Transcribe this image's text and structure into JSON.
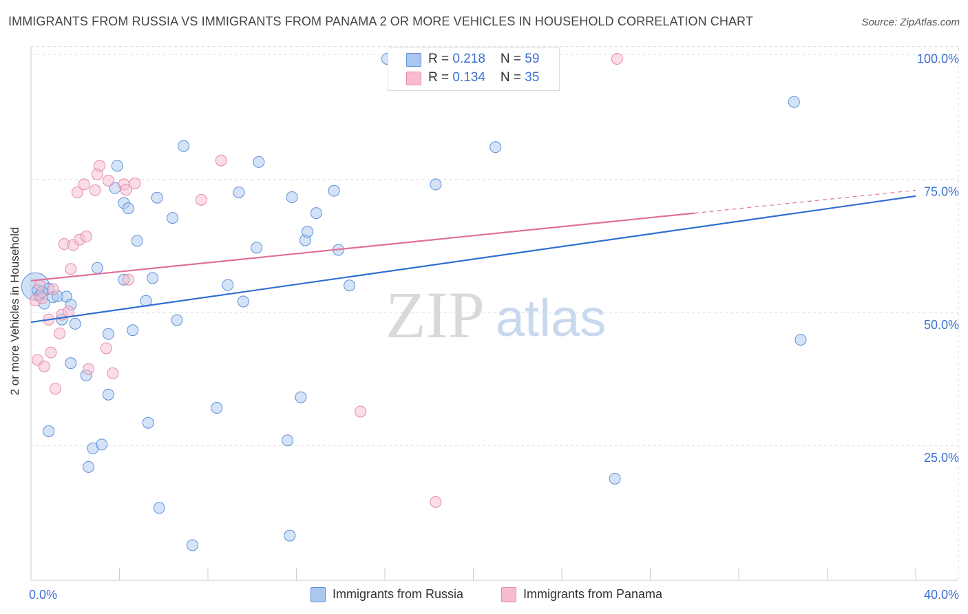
{
  "title": "IMMIGRANTS FROM RUSSIA VS IMMIGRANTS FROM PANAMA 2 OR MORE VEHICLES IN HOUSEHOLD CORRELATION CHART",
  "source": "Source: ZipAtlas.com",
  "watermark": {
    "zip": "ZIP",
    "atlas": "atlas"
  },
  "colors": {
    "russia_fill": "#aac7f0",
    "russia_stroke": "#5b8fd9",
    "russia_line": "#2f6fd0",
    "panama_fill": "#f6bccd",
    "panama_stroke": "#e68aa8",
    "panama_line": "#e0709a",
    "tick_label": "#3a6fd1",
    "grid": "#dddddd"
  },
  "legend_top": [
    {
      "r_label": "R = ",
      "r_value": "0.218",
      "n_label": "N = ",
      "n_value": "59"
    },
    {
      "r_label": "R = ",
      "r_value": "0.134",
      "n_label": "N = ",
      "n_value": "35"
    }
  ],
  "chart_data": {
    "type": "scatter",
    "title": "IMMIGRANTS FROM RUSSIA VS IMMIGRANTS FROM PANAMA 2 OR MORE VEHICLES IN HOUSEHOLD CORRELATION CHART",
    "xlabel": "",
    "ylabel": "2 or more Vehicles in Household",
    "xlim": [
      0,
      40
    ],
    "ylim": [
      2,
      102
    ],
    "x_tick_labels": [
      {
        "value": 0,
        "label": "0.0%"
      },
      {
        "value": 40,
        "label": "40.0%"
      }
    ],
    "y_tick_labels": [
      {
        "value": 25,
        "label": "25.0%"
      },
      {
        "value": 50,
        "label": "50.0%"
      },
      {
        "value": 75,
        "label": "75.0%"
      },
      {
        "value": 100,
        "label": "100.0%"
      }
    ],
    "grid": true,
    "series": [
      {
        "name": "Immigrants from Russia",
        "R": 0.218,
        "N": 59,
        "trend": {
          "x0": 0,
          "y0": 50.5,
          "x1": 40,
          "y1": 74.2
        },
        "points": [
          [
            0.2,
            57.2
          ],
          [
            0.3,
            56.5
          ],
          [
            0.4,
            55.5
          ],
          [
            0.6,
            54.0
          ],
          [
            0.8,
            56.8
          ],
          [
            1.0,
            55.2
          ],
          [
            1.2,
            55.4
          ],
          [
            1.4,
            51.0
          ],
          [
            1.6,
            55.3
          ],
          [
            1.8,
            53.8
          ],
          [
            2.0,
            50.2
          ],
          [
            0.8,
            30.0
          ],
          [
            1.8,
            42.8
          ],
          [
            2.5,
            40.5
          ],
          [
            2.8,
            26.8
          ],
          [
            2.6,
            23.3
          ],
          [
            3.2,
            27.5
          ],
          [
            3.0,
            60.7
          ],
          [
            3.5,
            48.3
          ],
          [
            3.5,
            36.9
          ],
          [
            3.9,
            79.9
          ],
          [
            3.8,
            75.7
          ],
          [
            4.2,
            72.9
          ],
          [
            4.4,
            71.9
          ],
          [
            4.2,
            58.5
          ],
          [
            4.6,
            49.0
          ],
          [
            4.8,
            65.8
          ],
          [
            5.2,
            54.5
          ],
          [
            5.3,
            31.6
          ],
          [
            5.5,
            58.8
          ],
          [
            5.7,
            73.9
          ],
          [
            5.8,
            15.6
          ],
          [
            6.4,
            70.1
          ],
          [
            6.6,
            50.9
          ],
          [
            6.9,
            83.6
          ],
          [
            7.3,
            8.6
          ],
          [
            8.4,
            34.4
          ],
          [
            8.9,
            57.5
          ],
          [
            9.4,
            74.9
          ],
          [
            9.6,
            54.4
          ],
          [
            10.2,
            64.5
          ],
          [
            10.3,
            80.6
          ],
          [
            11.6,
            28.3
          ],
          [
            11.7,
            10.4
          ],
          [
            11.8,
            74.0
          ],
          [
            12.2,
            36.4
          ],
          [
            12.4,
            65.9
          ],
          [
            12.5,
            67.5
          ],
          [
            12.9,
            71.0
          ],
          [
            13.7,
            75.2
          ],
          [
            13.9,
            64.1
          ],
          [
            14.4,
            57.4
          ],
          [
            16.1,
            100.0
          ],
          [
            18.3,
            76.4
          ],
          [
            21.0,
            83.4
          ],
          [
            26.4,
            21.1
          ],
          [
            34.5,
            91.9
          ],
          [
            34.8,
            47.2
          ],
          [
            0.5,
            56.2
          ]
        ]
      },
      {
        "name": "Immigrants from Panama",
        "R": 0.134,
        "N": 35,
        "trend": {
          "x0": 0,
          "y0": 58.3,
          "x1": 30,
          "y1": 71.0
        },
        "trend_dashed": {
          "x0": 30,
          "y0": 71.0,
          "x1": 40,
          "y1": 75.3
        },
        "points": [
          [
            0.2,
            54.6
          ],
          [
            0.3,
            43.4
          ],
          [
            0.4,
            57.4
          ],
          [
            0.5,
            55.0
          ],
          [
            0.6,
            42.2
          ],
          [
            0.8,
            51.0
          ],
          [
            0.9,
            44.8
          ],
          [
            1.0,
            56.7
          ],
          [
            1.1,
            38.0
          ],
          [
            1.3,
            48.4
          ],
          [
            1.4,
            51.9
          ],
          [
            1.5,
            65.2
          ],
          [
            1.7,
            52.5
          ],
          [
            1.8,
            60.5
          ],
          [
            1.9,
            65.0
          ],
          [
            2.1,
            74.9
          ],
          [
            2.2,
            66.0
          ],
          [
            2.4,
            76.4
          ],
          [
            2.5,
            66.6
          ],
          [
            2.6,
            41.7
          ],
          [
            2.9,
            75.3
          ],
          [
            3.0,
            78.3
          ],
          [
            3.1,
            79.9
          ],
          [
            3.4,
            45.6
          ],
          [
            3.5,
            77.1
          ],
          [
            3.7,
            40.9
          ],
          [
            4.2,
            76.4
          ],
          [
            4.3,
            75.4
          ],
          [
            4.4,
            58.5
          ],
          [
            4.7,
            76.6
          ],
          [
            7.7,
            73.5
          ],
          [
            8.6,
            80.9
          ],
          [
            14.9,
            33.7
          ],
          [
            18.3,
            16.7
          ],
          [
            26.5,
            100.0
          ]
        ]
      }
    ]
  },
  "legend_bottom": [
    {
      "label": "Immigrants from Russia"
    },
    {
      "label": "Immigrants from Panama"
    }
  ]
}
